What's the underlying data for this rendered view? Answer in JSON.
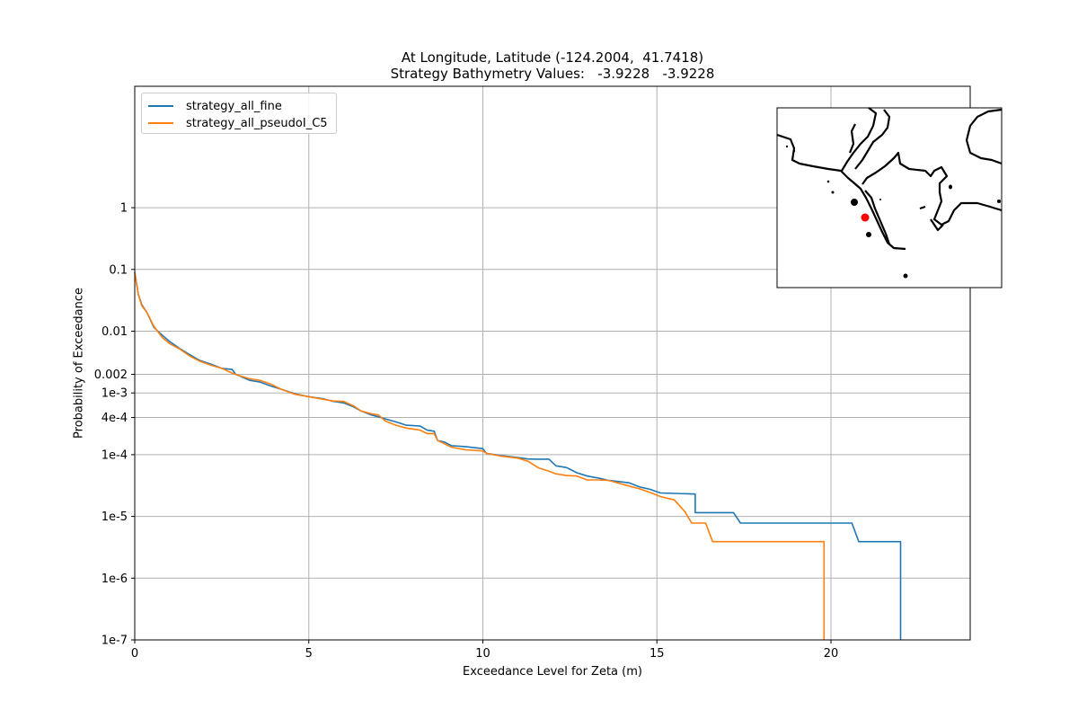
{
  "chart_data": {
    "type": "line",
    "title_line1": "At Longitude, Latitude (-124.2004,  41.7418)",
    "title_line2": "Strategy Bathymetry Values:   -3.9228   -3.9228",
    "xlabel": "Exceedance Level for Zeta (m)",
    "ylabel": "Probability of Exceedance",
    "xlim": [
      0,
      24
    ],
    "y_scale": "log",
    "grid": true,
    "legend_position": "top-left",
    "x_ticks": [
      0,
      5,
      10,
      15,
      20
    ],
    "x_tick_labels": [
      "0",
      "5",
      "10",
      "15",
      "20"
    ],
    "y_ticks": [
      1,
      0.1,
      0.01,
      0.002,
      0.001,
      0.0004,
      0.0001,
      1e-05,
      1e-06,
      1e-07
    ],
    "y_tick_labels": [
      "1",
      "0.1",
      "0.01",
      "0.002",
      "1e-3",
      "4e-4",
      "1e-4",
      "1e-5",
      "1e-6",
      "1e-7"
    ],
    "series": [
      {
        "name": "strategy_all_fine",
        "color": "#1f77b4",
        "points": [
          [
            0,
            0.09
          ],
          [
            0.1,
            0.04
          ],
          [
            0.2,
            0.027
          ],
          [
            0.35,
            0.02
          ],
          [
            0.55,
            0.0115
          ],
          [
            0.8,
            0.0085
          ],
          [
            1.0,
            0.0068
          ],
          [
            1.3,
            0.0052
          ],
          [
            1.6,
            0.0041
          ],
          [
            1.85,
            0.0034
          ],
          [
            2.2,
            0.0029
          ],
          [
            2.5,
            0.0025
          ],
          [
            2.8,
            0.0024
          ],
          [
            2.9,
            0.002
          ],
          [
            3.3,
            0.0016
          ],
          [
            3.6,
            0.0015
          ],
          [
            3.9,
            0.0013
          ],
          [
            4.2,
            0.00115
          ],
          [
            4.6,
            0.00097
          ],
          [
            5.0,
            0.00087
          ],
          [
            5.4,
            0.00081
          ],
          [
            5.7,
            0.00073
          ],
          [
            6.0,
            0.00069
          ],
          [
            6.3,
            0.00059
          ],
          [
            6.5,
            0.00051
          ],
          [
            6.8,
            0.00044
          ],
          [
            7.0,
            0.00041
          ],
          [
            7.2,
            0.00038
          ],
          [
            7.5,
            0.00034
          ],
          [
            7.8,
            0.0003
          ],
          [
            8.2,
            0.00029
          ],
          [
            8.4,
            0.00025
          ],
          [
            8.6,
            0.00024
          ],
          [
            8.7,
            0.00017
          ],
          [
            8.9,
            0.00016
          ],
          [
            9.1,
            0.00014
          ],
          [
            9.5,
            0.000135
          ],
          [
            10.0,
            0.000125
          ],
          [
            10.1,
            0.000105
          ],
          [
            10.5,
            9.7e-05
          ],
          [
            11.0,
            9e-05
          ],
          [
            11.3,
            8.5e-05
          ],
          [
            11.6,
            8.45e-05
          ],
          [
            11.9,
            8.45e-05
          ],
          [
            12.1,
            6.6e-05
          ],
          [
            12.4,
            6.2e-05
          ],
          [
            12.7,
            5.1e-05
          ],
          [
            13.0,
            4.5e-05
          ],
          [
            13.3,
            4.2e-05
          ],
          [
            13.6,
            3.85e-05
          ],
          [
            14.2,
            3.5e-05
          ],
          [
            14.5,
            3e-05
          ],
          [
            14.8,
            2.75e-05
          ],
          [
            15.1,
            2.4e-05
          ],
          [
            16.1,
            2.3e-05
          ],
          [
            16.1,
            1.15e-05
          ],
          [
            17.2,
            1.15e-05
          ],
          [
            17.4,
            7.8e-06
          ],
          [
            20.6,
            7.8e-06
          ],
          [
            20.8,
            3.9e-06
          ],
          [
            22.0,
            3.9e-06
          ],
          [
            22.0,
            1e-07
          ]
        ]
      },
      {
        "name": "strategy_all_pseudoI_C5",
        "color": "#ff7f0e",
        "points": [
          [
            0,
            0.09
          ],
          [
            0.1,
            0.04
          ],
          [
            0.2,
            0.026
          ],
          [
            0.35,
            0.02
          ],
          [
            0.55,
            0.012
          ],
          [
            0.8,
            0.0078
          ],
          [
            1.0,
            0.0063
          ],
          [
            1.3,
            0.0051
          ],
          [
            1.6,
            0.0039
          ],
          [
            1.85,
            0.0033
          ],
          [
            2.2,
            0.0028
          ],
          [
            2.5,
            0.0025
          ],
          [
            2.8,
            0.0021
          ],
          [
            3.0,
            0.0019
          ],
          [
            3.3,
            0.0017
          ],
          [
            3.6,
            0.0016
          ],
          [
            3.9,
            0.0014
          ],
          [
            4.2,
            0.00115
          ],
          [
            4.6,
            0.00095
          ],
          [
            5.0,
            0.00087
          ],
          [
            5.4,
            0.00079
          ],
          [
            5.7,
            0.00074
          ],
          [
            6.0,
            0.00073
          ],
          [
            6.3,
            0.00061
          ],
          [
            6.5,
            0.00051
          ],
          [
            6.8,
            0.00046
          ],
          [
            7.0,
            0.00044
          ],
          [
            7.2,
            0.00035
          ],
          [
            7.5,
            0.0003
          ],
          [
            7.8,
            0.00027
          ],
          [
            8.2,
            0.00025
          ],
          [
            8.4,
            0.00022
          ],
          [
            8.6,
            0.00022
          ],
          [
            8.7,
            0.00017
          ],
          [
            8.9,
            0.00015
          ],
          [
            9.1,
            0.000132
          ],
          [
            9.5,
            0.00012
          ],
          [
            10.0,
            0.000115
          ],
          [
            10.1,
            0.000105
          ],
          [
            10.5,
            9.5e-05
          ],
          [
            11.0,
            8.8e-05
          ],
          [
            11.3,
            7.8e-05
          ],
          [
            11.6,
            6.1e-05
          ],
          [
            11.9,
            5.4e-05
          ],
          [
            12.1,
            4.9e-05
          ],
          [
            12.4,
            4.6e-05
          ],
          [
            12.7,
            4.5e-05
          ],
          [
            13.0,
            3.9e-05
          ],
          [
            13.3,
            3.9e-05
          ],
          [
            13.6,
            3.85e-05
          ],
          [
            14.2,
            3.1e-05
          ],
          [
            14.5,
            2.8e-05
          ],
          [
            14.8,
            2.45e-05
          ],
          [
            15.1,
            2.1e-05
          ],
          [
            15.5,
            1.85e-05
          ],
          [
            15.8,
            1.2e-05
          ],
          [
            16.0,
            7.8e-06
          ],
          [
            16.4,
            7.8e-06
          ],
          [
            16.6,
            3.9e-06
          ],
          [
            19.8,
            3.9e-06
          ],
          [
            19.8,
            1e-07
          ]
        ]
      }
    ]
  },
  "inset_map": {
    "marker_color": "#ff0000",
    "coastline_color": "#000000"
  }
}
